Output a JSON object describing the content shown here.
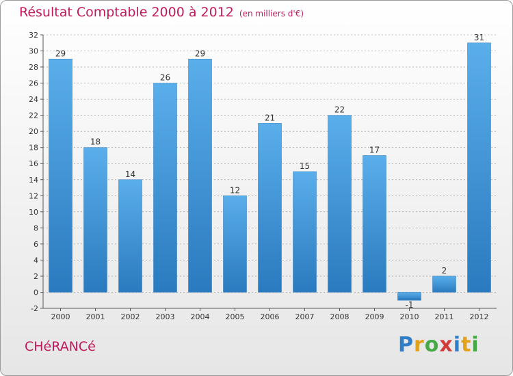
{
  "title": "Résultat Comptable 2000 à 2012",
  "subtitle": "(en milliers d'€)",
  "commune": "CHéRANCé",
  "logo": {
    "brand": "Proxiti"
  },
  "colors": {
    "title": "#c2185b",
    "bar_light": "#5aaeea",
    "bar_dark": "#2a7abf",
    "grid": "#8c8c8c"
  },
  "chart_data": {
    "type": "bar",
    "title": "Résultat Comptable 2000 à 2012",
    "subtitle": "(en milliers d'€)",
    "categories": [
      "2000",
      "2001",
      "2002",
      "2003",
      "2004",
      "2005",
      "2006",
      "2007",
      "2008",
      "2009",
      "2010",
      "2011",
      "2012"
    ],
    "values": [
      29,
      18,
      14,
      26,
      29,
      12,
      21,
      15,
      22,
      17,
      -1,
      2,
      31
    ],
    "data_labels": [
      "29",
      "18",
      "14",
      "26",
      "29",
      "12",
      "21",
      "15",
      "22",
      "17",
      "-1",
      "2",
      "31"
    ],
    "yticks": [
      -2,
      0,
      2,
      4,
      6,
      8,
      10,
      12,
      14,
      16,
      18,
      20,
      22,
      24,
      26,
      28,
      30,
      32
    ],
    "ylim": [
      -2,
      32
    ],
    "grid": true,
    "xlabel": "",
    "ylabel": ""
  }
}
